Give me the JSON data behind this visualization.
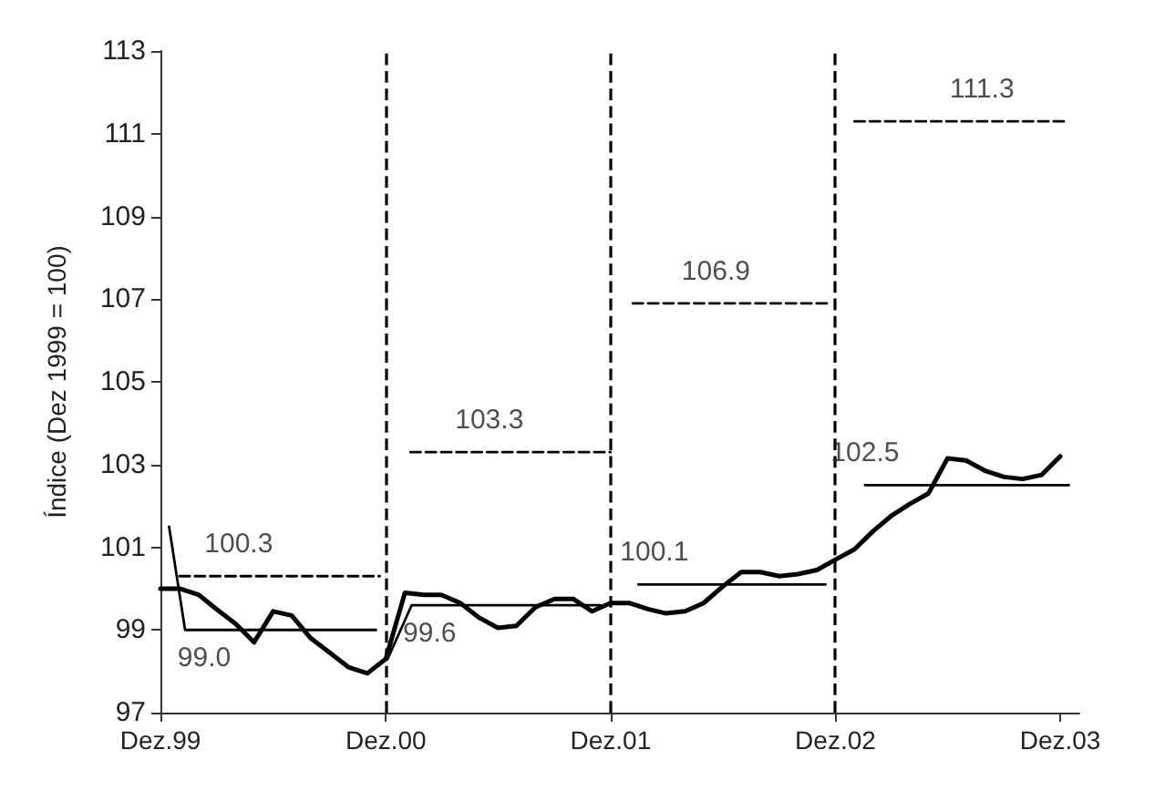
{
  "chart_data": {
    "type": "line",
    "ylabel": "Índice (Dez 1999 = 100)",
    "x": [
      "1999-12",
      "2000-01",
      "2000-02",
      "2000-03",
      "2000-04",
      "2000-05",
      "2000-06",
      "2000-07",
      "2000-08",
      "2000-09",
      "2000-10",
      "2000-11",
      "2000-12",
      "2001-01",
      "2001-02",
      "2001-03",
      "2001-04",
      "2001-05",
      "2001-06",
      "2001-07",
      "2001-08",
      "2001-09",
      "2001-10",
      "2001-11",
      "2001-12",
      "2002-01",
      "2002-02",
      "2002-03",
      "2002-04",
      "2002-05",
      "2002-06",
      "2002-07",
      "2002-08",
      "2002-09",
      "2002-10",
      "2002-11",
      "2002-12",
      "2003-01",
      "2003-02",
      "2003-03",
      "2003-04",
      "2003-05",
      "2003-06",
      "2003-07",
      "2003-08",
      "2003-09",
      "2003-10",
      "2003-11",
      "2003-12"
    ],
    "series": [
      {
        "color": "#000000",
        "line_style": "solid",
        "values": [
          100.0,
          100.0,
          99.85,
          99.5,
          99.15,
          98.7,
          99.45,
          99.35,
          98.8,
          98.45,
          98.1,
          97.95,
          98.3,
          99.9,
          99.85,
          99.85,
          99.65,
          99.3,
          99.05,
          99.1,
          99.55,
          99.75,
          99.75,
          99.45,
          99.65,
          99.65,
          99.5,
          99.4,
          99.45,
          99.65,
          100.05,
          100.4,
          100.4,
          100.3,
          100.35,
          100.45,
          100.7,
          100.95,
          101.4,
          101.75,
          102.05,
          102.3,
          103.15,
          103.1,
          102.85,
          102.7,
          102.65,
          102.75,
          103.2
        ]
      },
      {
        "color": "#000000",
        "line_style": "solid",
        "x": [
          "1999-12-15",
          "2000-01-10",
          "2000-11-15",
          "2000-12",
          "2000-12-04",
          "2001-01-12",
          "2001-11-15",
          "2001-12-15",
          "2002-01-15",
          "2002-11-15",
          "2002-12-15",
          "2003-01-18",
          "2003-12-15"
        ],
        "values": [
          101.5,
          99.0,
          99.0,
          null,
          98.3,
          99.6,
          99.6,
          null,
          100.1,
          100.1,
          null,
          102.5,
          102.5
        ]
      },
      {
        "color": "#000000",
        "line_style": "dashed",
        "x": [
          "2000-01",
          "2000-11-21",
          "2000-12-15",
          "2001-01-10",
          "2001-12",
          "2001-12-18",
          "2002-01-06",
          "2002-11-21",
          "2002-12-12",
          "2003-01",
          "2003-12-15"
        ],
        "values": [
          100.3,
          100.3,
          null,
          103.3,
          103.3,
          null,
          106.9,
          106.9,
          null,
          111.3,
          111.3
        ]
      }
    ],
    "xlim": [
      "1999-12",
      "2004-01"
    ],
    "xticks": [
      {
        "value": "1999-12",
        "label": "Dez.99"
      },
      {
        "value": "2000-12",
        "label": "Dez.00"
      },
      {
        "value": "2001-12",
        "label": "Dez.01"
      },
      {
        "value": "2002-12",
        "label": "Dez.02"
      },
      {
        "value": "2003-12",
        "label": "Dez.03"
      }
    ],
    "ylim": [
      97,
      113
    ],
    "yticks": [
      97,
      99,
      101,
      103,
      105,
      107,
      109,
      111,
      113
    ],
    "ref_lines": [
      {
        "axis": "x",
        "value": "2000-12",
        "line_style": "dashed",
        "color": "#000000"
      },
      {
        "axis": "x",
        "value": "2001-12",
        "line_style": "dashed",
        "color": "#000000"
      },
      {
        "axis": "x",
        "value": "2002-12",
        "line_style": "dashed",
        "color": "#000000"
      }
    ],
    "annotations": [
      {
        "text": "100.3",
        "x": "2000-04-06",
        "y": 100.3
      },
      {
        "text": "99.0",
        "x": "2000-02-10",
        "y": 99.0
      },
      {
        "text": "99.6",
        "x": "2001-02-10",
        "y": 99.6
      },
      {
        "text": "103.3",
        "x": "2001-05-18",
        "y": 103.3
      },
      {
        "text": "106.9",
        "x": "2002-05-21",
        "y": 106.9
      },
      {
        "text": "100.1",
        "x": "2002-02-10",
        "y": 100.1
      },
      {
        "text": "102.5",
        "x": "2003-01-18",
        "y": 102.5
      },
      {
        "text": "111.3",
        "x": "2003-07-27",
        "y": 111.3
      }
    ],
    "grid": false,
    "marker": "none"
  }
}
